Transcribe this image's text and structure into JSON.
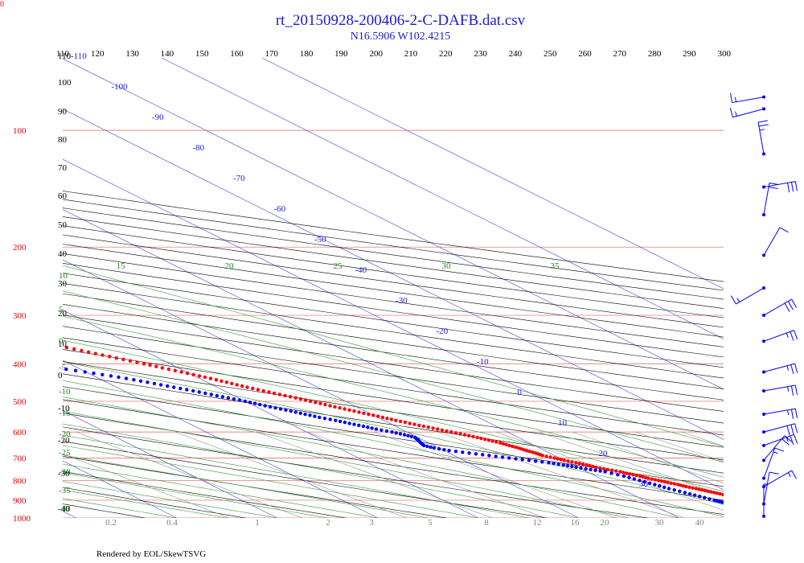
{
  "corner_label": "0",
  "footer": "Rendered by EOL/SkewTSVG",
  "colors": {
    "temperature": "#ff0000",
    "dewpoint": "#0000ff",
    "isobar": "#e06060",
    "isotherm": "#5050e0",
    "dry_adiabat": "#000000",
    "moist_adiabat": "#3a9a3a",
    "mixing_ratio": "#909090",
    "title": "#1a1adc",
    "wind": "#0000ff"
  },
  "chart_data": {
    "type": "scatter",
    "title": "rt_20150928-200406-2-C-DAFB.dat.csv",
    "subtitle": "N16.5906 W102.4215",
    "pressure_levels": [
      100,
      200,
      300,
      400,
      500,
      600,
      700,
      800,
      900,
      1000
    ],
    "pressure_labels": [
      "100",
      "200",
      "300",
      "400",
      "500",
      "600",
      "700",
      "800",
      "900",
      "1000"
    ],
    "top_axis_labels": [
      "110",
      "120",
      "130",
      "140",
      "150",
      "160",
      "170",
      "180",
      "190",
      "200",
      "210",
      "220",
      "230",
      "240",
      "250",
      "260",
      "270",
      "280",
      "290",
      "300"
    ],
    "isotherm_labels": [
      "-110",
      "-100",
      "-90",
      "-80",
      "-70",
      "-60",
      "-50",
      "-40",
      "-30",
      "-20",
      "-10",
      "0",
      "10",
      "20",
      "30"
    ],
    "moist_top_labels": [
      "15",
      "20",
      "25",
      "30",
      "35"
    ],
    "mixing_ratio_labels": [
      "0.2",
      "0.4",
      "1",
      "2",
      "3",
      "5",
      "8",
      "12",
      "16",
      "20",
      "30",
      "40"
    ],
    "left_black_labels": [
      "110",
      "100",
      "90",
      "80",
      "70",
      "60",
      "50",
      "40",
      "30",
      "20",
      "10",
      "0",
      "-10",
      "-20",
      "-30",
      "-40"
    ],
    "left_green_labels": [
      "10",
      "5",
      "0",
      "-5",
      "-10",
      "-15",
      "-20",
      "-25",
      "-30",
      "-35",
      "-40"
    ],
    "series": [
      {
        "name": "",
        "points": [
          [
            1000,
            25.8
          ],
          [
            990,
            25.3
          ],
          [
            980,
            24.8
          ],
          [
            970,
            24.3
          ],
          [
            960,
            23.7
          ],
          [
            950,
            23.1
          ],
          [
            940,
            22.6
          ],
          [
            930,
            22.0
          ],
          [
            920,
            21.4
          ],
          [
            910,
            21.0
          ],
          [
            900,
            20.6
          ],
          [
            890,
            20.0
          ],
          [
            880,
            19.5
          ],
          [
            870,
            19.0
          ],
          [
            860,
            18.5
          ],
          [
            850,
            18.0
          ],
          [
            840,
            17.5
          ],
          [
            830,
            16.9
          ],
          [
            820,
            16.5
          ],
          [
            810,
            15.9
          ],
          [
            800,
            15.4
          ],
          [
            790,
            14.8
          ],
          [
            780,
            14.4
          ],
          [
            770,
            13.8
          ],
          [
            760,
            13.3
          ],
          [
            750,
            12.5
          ],
          [
            740,
            11.8
          ],
          [
            730,
            11.3
          ],
          [
            720,
            10.7
          ],
          [
            710,
            10.0
          ],
          [
            700,
            9.5
          ],
          [
            690,
            8.8
          ],
          [
            680,
            8.6
          ],
          [
            670,
            8.2
          ],
          [
            660,
            7.9
          ],
          [
            650,
            7.5
          ],
          [
            640,
            7.1
          ],
          [
            630,
            6.5
          ],
          [
            620,
            5.9
          ],
          [
            610,
            5.2
          ],
          [
            600,
            4.4
          ],
          [
            590,
            3.6
          ],
          [
            580,
            2.8
          ],
          [
            570,
            2.0
          ],
          [
            560,
            1.2
          ],
          [
            550,
            0.5
          ],
          [
            540,
            -0.3
          ],
          [
            530,
            -1.1
          ],
          [
            520,
            -1.9
          ],
          [
            510,
            -2.7
          ],
          [
            500,
            -3.5
          ],
          [
            490,
            -4.3
          ],
          [
            480,
            -5.2
          ],
          [
            470,
            -6.1
          ],
          [
            460,
            -7.0
          ],
          [
            450,
            -7.8
          ],
          [
            440,
            -8.6
          ],
          [
            430,
            -9.5
          ],
          [
            420,
            -10.5
          ],
          [
            410,
            -11.6
          ],
          [
            400,
            -12.6
          ],
          [
            390,
            -13.8
          ],
          [
            380,
            -15.0
          ],
          [
            370,
            -16.2
          ],
          [
            360,
            -17.5
          ],
          [
            350,
            -18.8
          ],
          [
            340,
            -20.2
          ],
          [
            330,
            -21.6
          ],
          [
            320,
            -23.2
          ],
          [
            310,
            -24.9
          ],
          [
            300,
            -26.6
          ],
          [
            290,
            -28.3
          ],
          [
            280,
            -30.1
          ],
          [
            270,
            -32.0
          ],
          [
            260,
            -34.0
          ],
          [
            250,
            -36.0
          ],
          [
            240,
            -38.3
          ],
          [
            230,
            -40.6
          ],
          [
            220,
            -42.9
          ],
          [
            210,
            -45.4
          ],
          [
            200,
            -48.0
          ],
          [
            190,
            -50.7
          ],
          [
            180,
            -53.3
          ],
          [
            170,
            -56.2
          ],
          [
            160,
            -59.2
          ],
          [
            150,
            -62.3
          ],
          [
            140,
            -65.6
          ],
          [
            130,
            -69.1
          ],
          [
            120,
            -72.8
          ],
          [
            115,
            -74.9
          ],
          [
            110,
            -77.0
          ],
          [
            105,
            -78.5
          ],
          [
            100,
            -77.5
          ],
          [
            98,
            -75.0
          ],
          [
            95,
            -72.5
          ],
          [
            92,
            -71.2
          ],
          [
            90,
            -70.4
          ],
          [
            88,
            -69.8
          ],
          [
            85,
            -69.2
          ],
          [
            82,
            -68.4
          ],
          [
            80,
            -67.4
          ],
          [
            78,
            -66.0
          ],
          [
            76,
            -62.8
          ],
          [
            75,
            -60.0
          ],
          [
            74,
            -57.5
          ],
          [
            73,
            -55.5
          ],
          [
            72,
            -54.2
          ],
          [
            70,
            -52.0
          ],
          [
            69,
            -51.2
          ],
          [
            68,
            -49.9
          ],
          [
            67,
            -48.6
          ],
          [
            66,
            -47.4
          ],
          [
            65,
            -46.5
          ]
        ]
      },
      {
        "name": "",
        "points": [
          [
            1000,
            20.5
          ],
          [
            990,
            20.2
          ],
          [
            980,
            20.0
          ],
          [
            970,
            19.7
          ],
          [
            960,
            19.3
          ],
          [
            950,
            19.0
          ],
          [
            940,
            18.7
          ],
          [
            930,
            18.3
          ],
          [
            920,
            17.8
          ],
          [
            910,
            17.4
          ],
          [
            900,
            17.0
          ],
          [
            880,
            16.3
          ],
          [
            860,
            15.6
          ],
          [
            840,
            14.8
          ],
          [
            820,
            14.2
          ],
          [
            800,
            13.5
          ],
          [
            780,
            12.8
          ],
          [
            760,
            11.8
          ],
          [
            750,
            10.8
          ],
          [
            740,
            9.8
          ],
          [
            730,
            9.0
          ],
          [
            720,
            8.0
          ],
          [
            710,
            6.5
          ],
          [
            700,
            5.0
          ],
          [
            690,
            3.5
          ],
          [
            680,
            2.0
          ],
          [
            670,
            0.5
          ],
          [
            660,
            -0.5
          ],
          [
            650,
            -1.0
          ],
          [
            640,
            -0.8
          ],
          [
            630,
            -0.5
          ],
          [
            620,
            -0.3
          ],
          [
            610,
            -0.8
          ],
          [
            600,
            -1.5
          ],
          [
            590,
            -2.5
          ],
          [
            580,
            -3.2
          ],
          [
            570,
            -4.0
          ],
          [
            560,
            -4.8
          ],
          [
            550,
            -5.8
          ],
          [
            540,
            -6.6
          ],
          [
            530,
            -7.4
          ],
          [
            520,
            -8.3
          ],
          [
            510,
            -9.2
          ],
          [
            500,
            -10.0
          ],
          [
            490,
            -11.0
          ],
          [
            480,
            -12.0
          ],
          [
            470,
            -13.1
          ],
          [
            460,
            -14.3
          ],
          [
            450,
            -15.5
          ],
          [
            440,
            -16.8
          ],
          [
            430,
            -18.3
          ],
          [
            420,
            -20.1
          ],
          [
            410,
            -22.1
          ],
          [
            400,
            -24.2
          ],
          [
            390,
            -26.5
          ],
          [
            380,
            -29.0
          ],
          [
            370,
            -31.7
          ],
          [
            360,
            -34.6
          ],
          [
            350,
            -37.5
          ],
          [
            340,
            -40.5
          ],
          [
            330,
            -43.5
          ],
          [
            320,
            -46.5
          ],
          [
            310,
            -49.5
          ],
          [
            300,
            -52.5
          ],
          [
            290,
            -55.7
          ],
          [
            280,
            -59.1
          ],
          [
            270,
            -62.6
          ],
          [
            260,
            -66.4
          ],
          [
            250,
            -70.3
          ],
          [
            240,
            -74.4
          ],
          [
            230,
            -78.6
          ],
          [
            220,
            -83.1
          ],
          [
            210,
            -87.9
          ]
        ]
      }
    ],
    "winds": [
      {
        "p": 82,
        "spd": 15,
        "dir": 260
      },
      {
        "p": 88,
        "spd": 15,
        "dir": 255
      },
      {
        "p": 115,
        "spd": 25,
        "dir": 350
      },
      {
        "p": 140,
        "spd": 30,
        "dir": 80
      },
      {
        "p": 165,
        "spd": 20,
        "dir": 10
      },
      {
        "p": 210,
        "spd": 10,
        "dir": 30
      },
      {
        "p": 255,
        "spd": 15,
        "dir": 240
      },
      {
        "p": 300,
        "spd": 30,
        "dir": 60
      },
      {
        "p": 350,
        "spd": 25,
        "dir": 70
      },
      {
        "p": 420,
        "spd": 25,
        "dir": 75
      },
      {
        "p": 470,
        "spd": 25,
        "dir": 80
      },
      {
        "p": 540,
        "spd": 25,
        "dir": 80
      },
      {
        "p": 600,
        "spd": 30,
        "dir": 75
      },
      {
        "p": 650,
        "spd": 25,
        "dir": 70
      },
      {
        "p": 710,
        "spd": 20,
        "dir": 40
      },
      {
        "p": 790,
        "spd": 15,
        "dir": 20
      },
      {
        "p": 830,
        "spd": 15,
        "dir": 60
      },
      {
        "p": 920,
        "spd": 10,
        "dir": 10
      },
      {
        "p": 990,
        "spd": 5,
        "dir": 360
      }
    ]
  }
}
